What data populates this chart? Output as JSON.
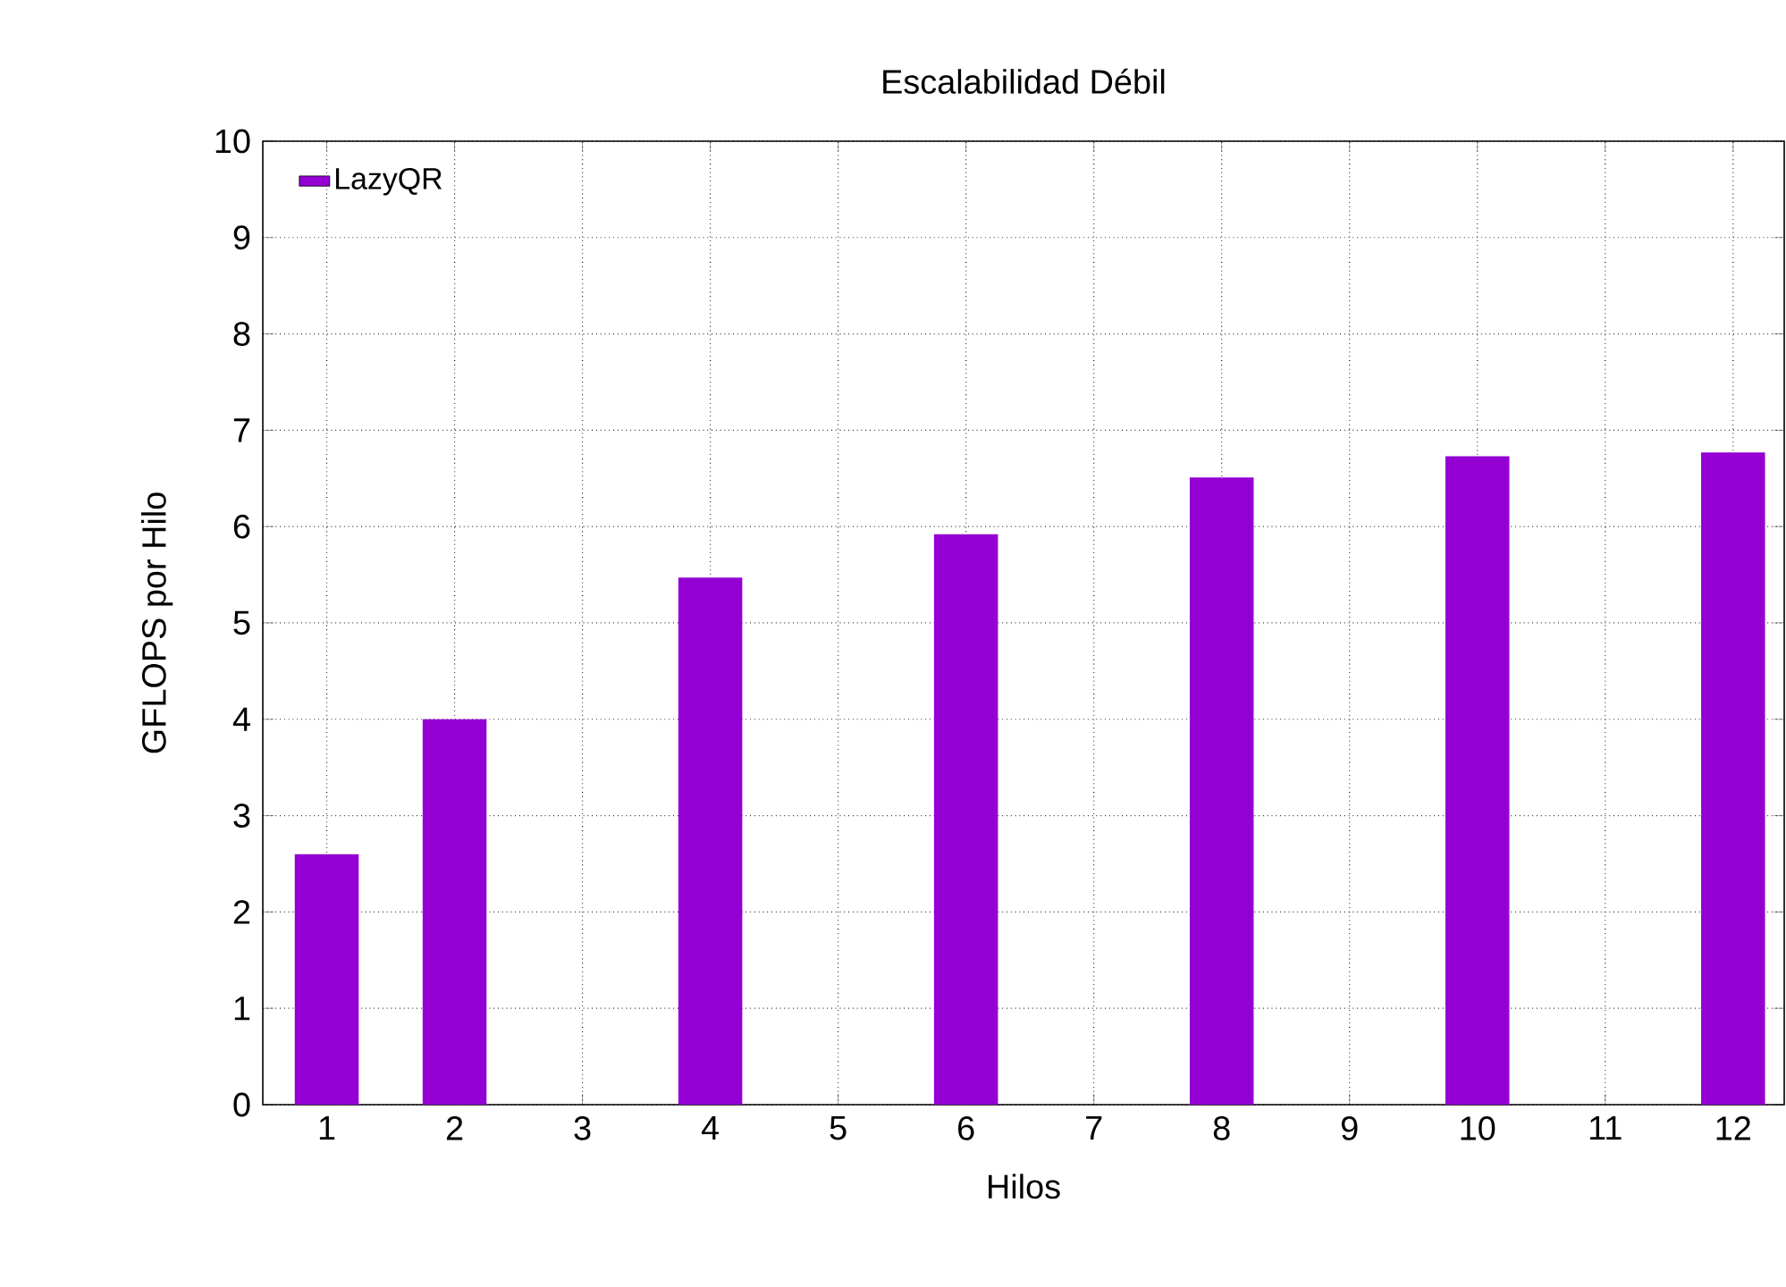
{
  "chart_data": {
    "type": "bar",
    "title": "Escalabilidad Débil",
    "xlabel": "Hilos",
    "ylabel": "GFLOPS por Hilo",
    "x": [
      1,
      2,
      4,
      6,
      8,
      10,
      12
    ],
    "series": [
      {
        "name": "LazyQR",
        "color": "#9400d3",
        "values": [
          2.6,
          4.0,
          5.47,
          5.92,
          6.51,
          6.73,
          6.77
        ]
      }
    ],
    "xlim": [
      0.5,
      12.4
    ],
    "xticks": [
      1,
      2,
      3,
      4,
      5,
      6,
      7,
      8,
      9,
      10,
      11,
      12
    ],
    "ylim": [
      0,
      10
    ],
    "yticks": [
      0,
      1,
      2,
      3,
      4,
      5,
      6,
      7,
      8,
      9,
      10
    ],
    "grid": true,
    "legend": "top left"
  }
}
